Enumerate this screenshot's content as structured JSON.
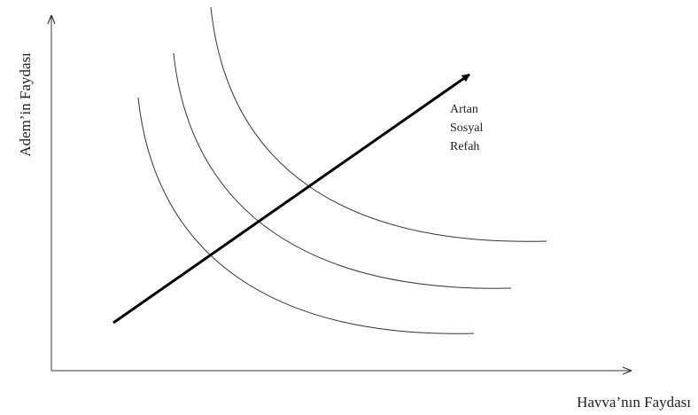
{
  "y_axis_label": "Adem’in Faydası",
  "x_axis_label": "Havva’nın Faydası",
  "annotation": {
    "lines": [
      "Artan",
      "Sosyal",
      "Refah"
    ]
  }
}
